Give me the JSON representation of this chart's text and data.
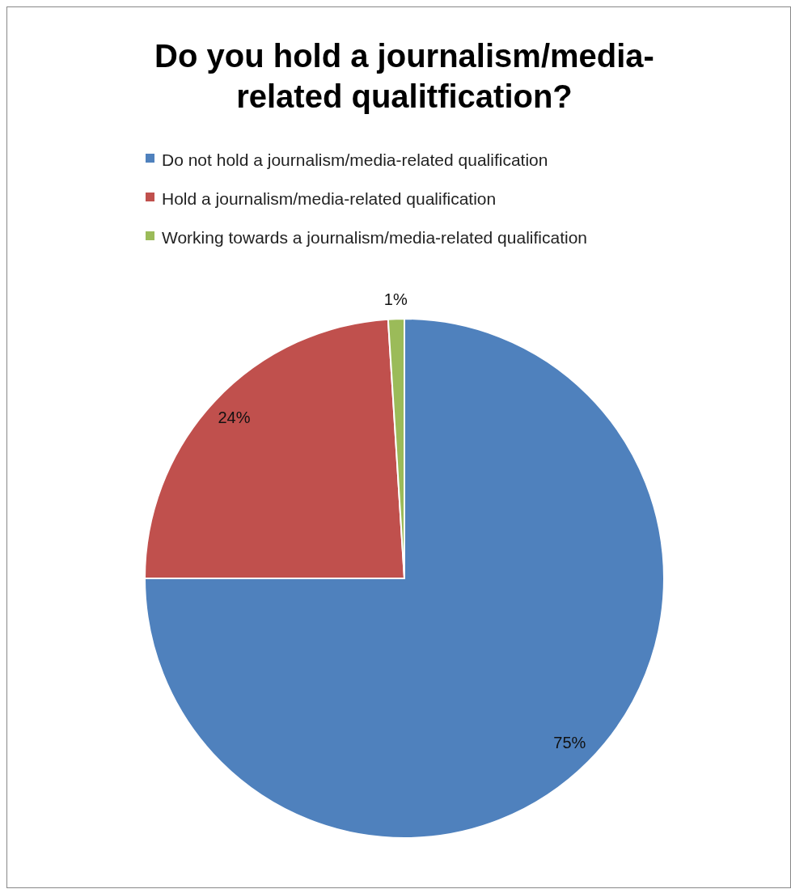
{
  "chart_data": {
    "type": "pie",
    "title": "Do you hold a journalism/media-related qualitfication?",
    "categories": [
      "Do not hold a journalism/media-related qualification",
      "Hold a journalism/media-related qualification",
      "Working towards a journalism/media-related qualification"
    ],
    "values": [
      75,
      24,
      1
    ],
    "colors": [
      "#4f81bd",
      "#c0504d",
      "#9bbb59"
    ],
    "value_labels": [
      "75%",
      "24%",
      "1%"
    ],
    "legend": "top"
  }
}
